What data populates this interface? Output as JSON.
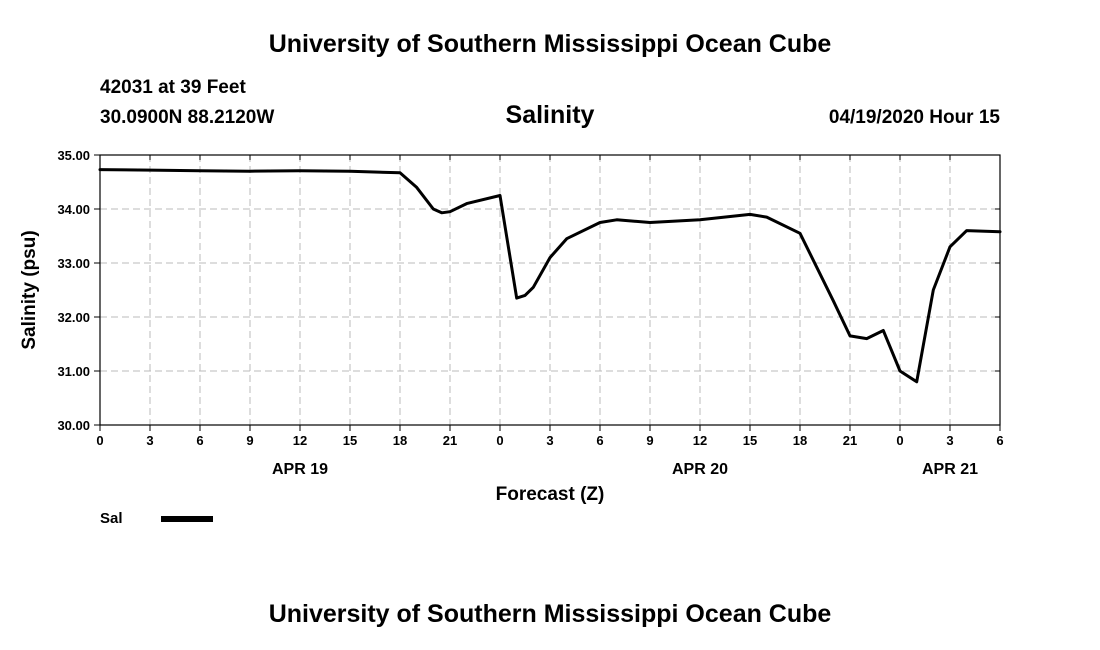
{
  "header": {
    "title_top": "University of Southern Mississippi Ocean Cube",
    "station": "42031 at 39 Feet",
    "coords": "30.0900N 88.2120W",
    "chart_title": "Salinity",
    "datetime": "04/19/2020 Hour 15",
    "title_bottom": "University of Southern Mississippi Ocean Cube"
  },
  "legend": {
    "label": "Sal"
  },
  "colors": {
    "line": "#000000",
    "grid": "#bbbbbb"
  },
  "chart_data": {
    "type": "line",
    "title": "Salinity",
    "xlabel": "Forecast (Z)",
    "ylabel": "Salinity (psu)",
    "xlim": [
      0,
      54
    ],
    "ylim": [
      30,
      35
    ],
    "x_ticks": [
      0,
      3,
      6,
      9,
      12,
      15,
      18,
      21,
      24,
      27,
      30,
      33,
      36,
      39,
      42,
      45,
      48,
      51,
      54
    ],
    "x_tick_labels": [
      "0",
      "3",
      "6",
      "9",
      "12",
      "15",
      "18",
      "21",
      "0",
      "3",
      "6",
      "9",
      "12",
      "15",
      "18",
      "21",
      "0",
      "3",
      "6"
    ],
    "y_ticks": [
      30,
      31,
      32,
      33,
      34,
      35
    ],
    "y_tick_labels": [
      "30.00",
      "31.00",
      "32.00",
      "33.00",
      "34.00",
      "35.00"
    ],
    "date_labels": [
      {
        "x": 12,
        "label": "APR 19"
      },
      {
        "x": 36,
        "label": "APR 20"
      },
      {
        "x": 51,
        "label": "APR 21"
      }
    ],
    "grid": true,
    "series": [
      {
        "name": "Sal",
        "x": [
          0,
          3,
          6,
          9,
          12,
          15,
          18,
          19,
          20,
          20.5,
          21,
          22,
          24,
          25,
          25.5,
          26,
          27,
          28,
          30,
          31,
          33,
          36,
          39,
          40,
          42,
          44,
          45,
          46,
          47,
          48,
          49,
          50,
          51,
          52,
          54
        ],
        "y": [
          34.73,
          34.72,
          34.71,
          34.7,
          34.71,
          34.7,
          34.67,
          34.4,
          34.0,
          33.93,
          33.95,
          34.1,
          34.25,
          32.35,
          32.4,
          32.55,
          33.1,
          33.45,
          33.75,
          33.8,
          33.75,
          33.8,
          33.9,
          33.85,
          33.55,
          32.3,
          31.65,
          31.6,
          31.75,
          31.0,
          30.8,
          32.5,
          33.3,
          33.6,
          33.58
        ]
      }
    ]
  }
}
